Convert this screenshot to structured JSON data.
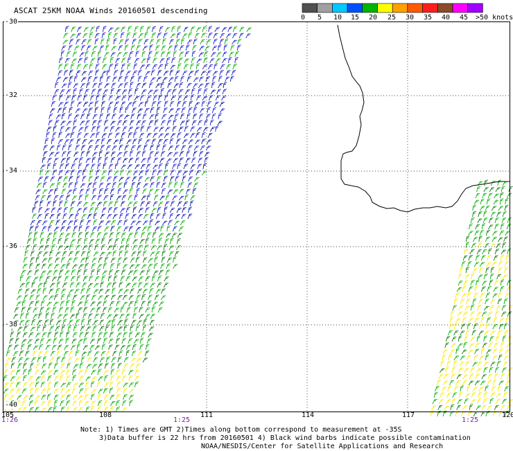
{
  "title": "ASCAT 25KM NOAA Winds 20160501 descending",
  "colors": {
    "scale_bins": [
      "#505050",
      "#a0a0a0",
      "#00c8ff",
      "#0050ff",
      "#00b400",
      "#ffff00",
      "#ffa000",
      "#ff5a00",
      "#ff1e1e",
      "#8b4a2b",
      "#ff00ff",
      "#a000ff"
    ],
    "barb_slow": "#00b000",
    "barb_dark": "#0a7a0a",
    "barb_blue": "#1a1ad0",
    "barb_navy": "#00109a",
    "barb_yellow": "#ffe800",
    "coast": "#000000"
  },
  "scale_labels": [
    "0",
    "5",
    "10",
    "15",
    "20",
    "25",
    "30",
    "35",
    "40",
    "45",
    ">50 knots"
  ],
  "lat_labels": [
    "-30",
    "-32",
    "-34",
    "-36",
    "-38",
    "-40"
  ],
  "lon_labels": [
    "105",
    "108",
    "111",
    "114",
    "117",
    "120"
  ],
  "time_labels": [
    "1:26",
    "1:25",
    "1:25"
  ],
  "notes": [
    "Note: 1) Times are GMT 2)Times along bottom correspond to measurement at -35S",
    "3)Data buffer is 22 hrs from 20160501 4) Black wind barbs indicate possible contamination",
    "NOAA/NESDIS/Center for Satellite Applications and Research"
  ]
}
